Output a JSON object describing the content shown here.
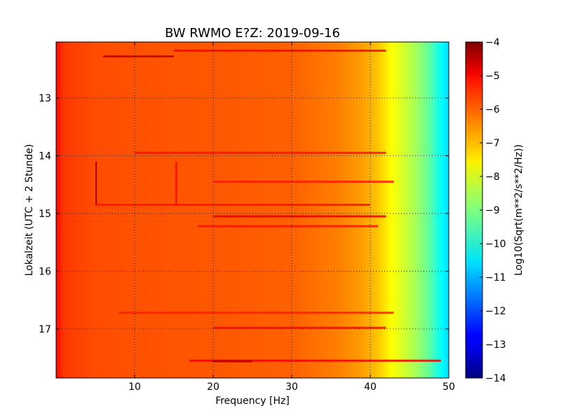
{
  "chart_data": {
    "type": "heatmap",
    "title": "BW RWMO E?Z: 2019-09-16",
    "xlabel": "Frequency [Hz]",
    "ylabel": "Lokalzeit (UTC + 2 Stunde)",
    "colorbar_label": "Log10(Sqrt(m**2/s**2/Hz))",
    "xlim": [
      0,
      50
    ],
    "ylim": [
      12.03,
      17.85
    ],
    "y_inverted": true,
    "xticks": [
      10,
      20,
      30,
      40,
      50
    ],
    "xtick_labels": [
      "10",
      "20",
      "30",
      "40",
      "50"
    ],
    "yticks": [
      13,
      14,
      15,
      16,
      17
    ],
    "ytick_labels": [
      "13",
      "14",
      "15",
      "16",
      "17"
    ],
    "clim": [
      -14,
      -4
    ],
    "cticks": [
      -4,
      -5,
      -6,
      -7,
      -8,
      -9,
      -10,
      -11,
      -12,
      -13,
      -14
    ],
    "ctick_labels": [
      "−4",
      "−5",
      "−6",
      "−7",
      "−8",
      "−9",
      "−10",
      "−11",
      "−12",
      "−13",
      "−14"
    ],
    "colormap": "jet",
    "grid": true,
    "spectrum_profile": {
      "frequency_hz": [
        0,
        1,
        5,
        10,
        20,
        30,
        36,
        39,
        41,
        42.5,
        44,
        46,
        47.5,
        49,
        50
      ],
      "log10_amplitude": [
        -5.3,
        -5.8,
        -6.0,
        -6.05,
        -6.1,
        -6.2,
        -6.5,
        -6.8,
        -7.2,
        -7.7,
        -8.1,
        -8.7,
        -9.3,
        -10.2,
        -10.6
      ]
    },
    "horizontal_bands": [
      {
        "time": 12.18,
        "f_start": 15,
        "f_end": 42,
        "log10_amplitude": -5.2
      },
      {
        "time": 12.28,
        "f_start": 6,
        "f_end": 15,
        "log10_amplitude": -4.6
      },
      {
        "time": 13.95,
        "f_start": 10,
        "f_end": 42,
        "log10_amplitude": -5.4
      },
      {
        "time": 14.45,
        "f_start": 20,
        "f_end": 43,
        "log10_amplitude": -5.5
      },
      {
        "time": 14.85,
        "f_start": 5,
        "f_end": 40,
        "log10_amplitude": -5.4
      },
      {
        "time": 15.05,
        "f_start": 20,
        "f_end": 42,
        "log10_amplitude": -5.0
      },
      {
        "time": 15.22,
        "f_start": 18,
        "f_end": 41,
        "log10_amplitude": -5.4
      },
      {
        "time": 16.72,
        "f_start": 8,
        "f_end": 43,
        "log10_amplitude": -5.5
      },
      {
        "time": 16.98,
        "f_start": 20,
        "f_end": 42,
        "log10_amplitude": -5.3
      },
      {
        "time": 17.55,
        "f_start": 17,
        "f_end": 49,
        "log10_amplitude": -5.1
      },
      {
        "time": 17.56,
        "f_start": 20,
        "f_end": 25,
        "log10_amplitude": -4.5
      }
    ],
    "vertical_bands": [
      {
        "frequency": 5.1,
        "t_start": 14.1,
        "t_end": 14.85,
        "log10_amplitude": -4.4
      },
      {
        "frequency": 15.3,
        "t_start": 14.1,
        "t_end": 14.85,
        "log10_amplitude": -5.2
      }
    ]
  }
}
